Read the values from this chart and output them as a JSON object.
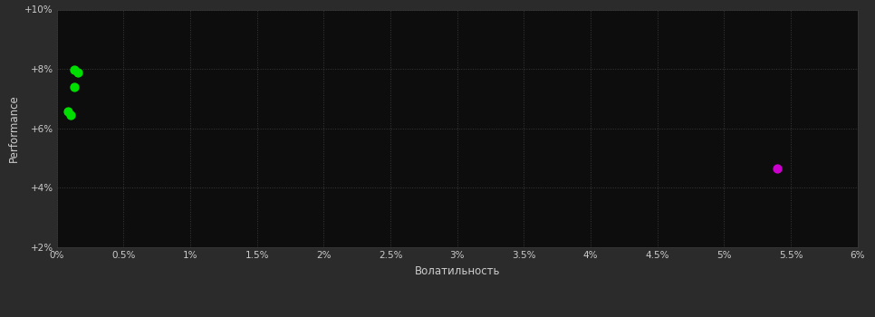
{
  "background_color": "#2b2b2b",
  "plot_bg_color": "#0d0d0d",
  "grid_color": "#3a3a3a",
  "text_color": "#cccccc",
  "xlabel": "Волатильность",
  "ylabel": "Performance",
  "green_points": [
    [
      0.0013,
      0.0798
    ],
    [
      0.0016,
      0.0787
    ],
    [
      0.0013,
      0.074
    ],
    [
      0.0008,
      0.0658
    ],
    [
      0.001,
      0.0645
    ]
  ],
  "magenta_points": [
    [
      0.054,
      0.0465
    ]
  ],
  "xlim": [
    0,
    0.06
  ],
  "ylim": [
    0.02,
    0.1
  ],
  "xtick_vals": [
    0.0,
    0.005,
    0.01,
    0.015,
    0.02,
    0.025,
    0.03,
    0.035,
    0.04,
    0.045,
    0.05,
    0.055,
    0.06
  ],
  "xtick_labels": [
    "0%",
    "0.5%",
    "1%",
    "1.5%",
    "2%",
    "2.5%",
    "3%",
    "3.5%",
    "4%",
    "4.5%",
    "5%",
    "5.5%",
    "6%"
  ],
  "ytick_vals": [
    0.02,
    0.04,
    0.06,
    0.08,
    0.1
  ],
  "ytick_labels": [
    "+2%",
    "+4%",
    "+6%",
    "+8%",
    "+10%"
  ],
  "green_color": "#00dd00",
  "magenta_color": "#cc00cc",
  "marker_size": 55,
  "font_size_ticks": 7.5,
  "font_size_label": 8.5
}
